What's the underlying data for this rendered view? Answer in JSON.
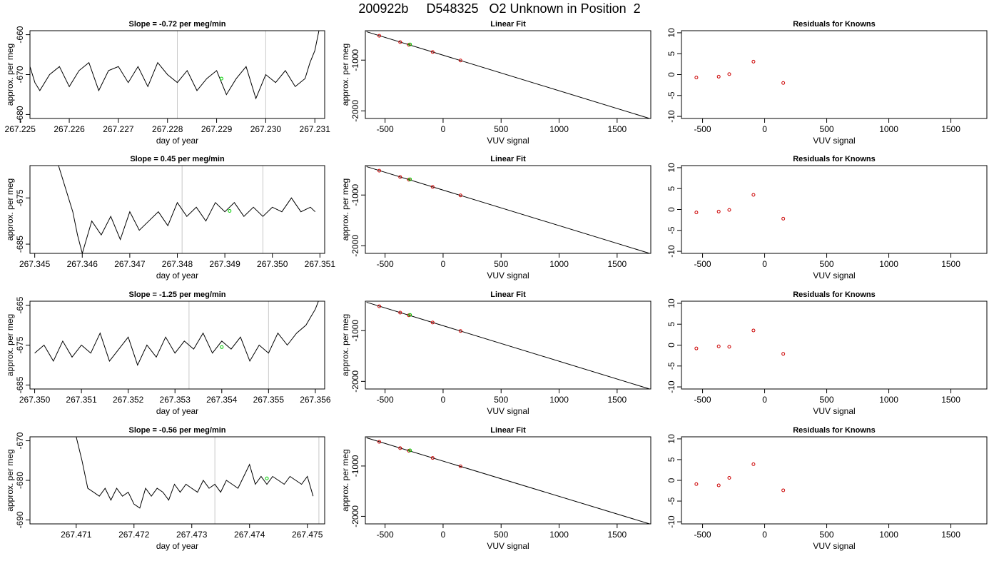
{
  "page_title": "200922b     D548325   O2 Unknown in Position  2",
  "colors": {
    "trace": "#000000",
    "marker_line": "#c8c8c8",
    "unknown_point": "#00cc00",
    "known_point": "#cc0000",
    "fit_line": "#000000"
  },
  "chart_data": [
    {
      "type": "line",
      "panel": "timeseries",
      "row": 1,
      "title": "Slope =  -0.72  per meg/min",
      "xlabel": "day of year",
      "ylabel": "approx. per meg",
      "xlim": [
        267.2252,
        267.2312
      ],
      "ylim": [
        -681,
        -659
      ],
      "xticks": [
        "267.225",
        "267.226",
        "267.227",
        "267.228",
        "267.229",
        "267.230",
        "267.231"
      ],
      "xtick_values": [
        267.225,
        267.226,
        267.227,
        267.228,
        267.229,
        267.23,
        267.231
      ],
      "yticks": [
        "-680",
        "-670",
        "-660"
      ],
      "ytick_values": [
        -680,
        -670,
        -660
      ],
      "x": [
        267.2252,
        267.2253,
        267.2254,
        267.2256,
        267.2258,
        267.226,
        267.2262,
        267.2264,
        267.2266,
        267.2268,
        267.227,
        267.2272,
        267.2274,
        267.2276,
        267.2278,
        267.228,
        267.2282,
        267.2284,
        267.2286,
        267.2288,
        267.229,
        267.2292,
        267.2294,
        267.2296,
        267.2298,
        267.23,
        267.2302,
        267.2304,
        267.2306,
        267.2308,
        267.2309,
        267.231,
        267.2311
      ],
      "y": [
        -668,
        -672,
        -674,
        -670,
        -668,
        -673,
        -669,
        -667,
        -674,
        -669,
        -668,
        -672,
        -668,
        -673,
        -667,
        -670,
        -672,
        -669,
        -674,
        -671,
        -669,
        -675,
        -671,
        -668,
        -676,
        -670,
        -672,
        -669,
        -673,
        -671,
        -667,
        -664,
        -658
      ],
      "vlines": [
        267.2282,
        267.23
      ],
      "unknown_point": {
        "x": 267.2291,
        "y": -671
      }
    },
    {
      "type": "line",
      "panel": "linear_fit",
      "row": 1,
      "title": "Linear Fit",
      "xlabel": "VUV signal",
      "ylabel": "approx. per meg",
      "xlim": [
        -670,
        1790
      ],
      "ylim": [
        -2150,
        -420
      ],
      "xticks": [
        "-500",
        "0",
        "500",
        "1000",
        "1500"
      ],
      "xtick_values": [
        -500,
        0,
        500,
        1000,
        1500
      ],
      "yticks": [
        "-1000",
        "-2000"
      ],
      "ytick_values": [
        -1000,
        -2000
      ],
      "fit_line": [
        [
          -660,
          -440
        ],
        [
          1780,
          -2150
        ]
      ],
      "knowns": [
        {
          "x": -550,
          "y": -520
        },
        {
          "x": -370,
          "y": -645
        },
        {
          "x": -295,
          "y": -697
        },
        {
          "x": -90,
          "y": -840
        },
        {
          "x": 150,
          "y": -1007
        }
      ],
      "unknown": {
        "x": -285,
        "y": -690
      }
    },
    {
      "type": "scatter",
      "panel": "residuals",
      "row": 1,
      "title": "Residuals for Knowns",
      "xlabel": "VUV signal",
      "ylabel": "",
      "xlim": [
        -670,
        1790
      ],
      "ylim": [
        -10.5,
        10.5
      ],
      "xticks": [
        "-500",
        "0",
        "500",
        "1000",
        "1500"
      ],
      "xtick_values": [
        -500,
        0,
        500,
        1000,
        1500
      ],
      "yticks": [
        "-10",
        "-5",
        "0",
        "5",
        "10"
      ],
      "ytick_values": [
        -10,
        -5,
        0,
        5,
        10
      ],
      "points": [
        {
          "x": -550,
          "y": -0.7
        },
        {
          "x": -370,
          "y": -0.5
        },
        {
          "x": -285,
          "y": 0.1
        },
        {
          "x": -90,
          "y": 3.1
        },
        {
          "x": 150,
          "y": -2.0
        }
      ]
    },
    {
      "type": "line",
      "panel": "timeseries",
      "row": 2,
      "title": "Slope =  0.45  per meg/min",
      "xlabel": "day of year",
      "ylabel": "approx. per meg",
      "xlim": [
        267.3449,
        267.3511
      ],
      "ylim": [
        -687,
        -668
      ],
      "xticks": [
        "267.345",
        "267.346",
        "267.347",
        "267.348",
        "267.349",
        "267.350",
        "267.351"
      ],
      "xtick_values": [
        267.345,
        267.346,
        267.347,
        267.348,
        267.349,
        267.35,
        267.351
      ],
      "yticks": [
        "-685",
        "-675"
      ],
      "ytick_values": [
        -685,
        -675
      ],
      "x": [
        267.3455,
        267.3458,
        267.3459,
        267.346,
        267.3462,
        267.3464,
        267.3466,
        267.3468,
        267.347,
        267.3472,
        267.3474,
        267.3476,
        267.3478,
        267.348,
        267.3482,
        267.3484,
        267.3486,
        267.3488,
        267.349,
        267.3492,
        267.3494,
        267.3496,
        267.3498,
        267.35,
        267.3502,
        267.3504,
        267.3506,
        267.3508,
        267.3509
      ],
      "y": [
        -668,
        -678,
        -683,
        -687,
        -680,
        -683,
        -679,
        -684,
        -678,
        -682,
        -680,
        -678,
        -681,
        -676,
        -679,
        -677,
        -680,
        -676,
        -678,
        -676,
        -679,
        -677,
        -679,
        -677,
        -678,
        -675,
        -678,
        -677,
        -678
      ],
      "vlines": [
        267.3481,
        267.3498
      ],
      "unknown_point": {
        "x": 267.3491,
        "y": -677.8
      }
    },
    {
      "type": "line",
      "panel": "linear_fit",
      "row": 2,
      "title": "Linear Fit",
      "xlabel": "VUV signal",
      "ylabel": "approx. per meg",
      "xlim": [
        -670,
        1790
      ],
      "ylim": [
        -2150,
        -420
      ],
      "xticks": [
        "-500",
        "0",
        "500",
        "1000",
        "1500"
      ],
      "xtick_values": [
        -500,
        0,
        500,
        1000,
        1500
      ],
      "yticks": [
        "-1000",
        "-2000"
      ],
      "ytick_values": [
        -1000,
        -2000
      ],
      "fit_line": [
        [
          -660,
          -440
        ],
        [
          1780,
          -2150
        ]
      ],
      "knowns": [
        {
          "x": -550,
          "y": -520
        },
        {
          "x": -370,
          "y": -645
        },
        {
          "x": -295,
          "y": -697
        },
        {
          "x": -90,
          "y": -840
        },
        {
          "x": 150,
          "y": -1007
        }
      ],
      "unknown": {
        "x": -285,
        "y": -690
      }
    },
    {
      "type": "scatter",
      "panel": "residuals",
      "row": 2,
      "title": "Residuals for Knowns",
      "xlabel": "VUV signal",
      "ylabel": "",
      "xlim": [
        -670,
        1790
      ],
      "ylim": [
        -10.5,
        10.5
      ],
      "xticks": [
        "-500",
        "0",
        "500",
        "1000",
        "1500"
      ],
      "xtick_values": [
        -500,
        0,
        500,
        1000,
        1500
      ],
      "yticks": [
        "-10",
        "-5",
        "0",
        "5",
        "10"
      ],
      "ytick_values": [
        -10,
        -5,
        0,
        5,
        10
      ],
      "points": [
        {
          "x": -550,
          "y": -0.7
        },
        {
          "x": -370,
          "y": -0.5
        },
        {
          "x": -285,
          "y": -0.1
        },
        {
          "x": -90,
          "y": 3.5
        },
        {
          "x": 150,
          "y": -2.2
        }
      ]
    },
    {
      "type": "line",
      "panel": "timeseries",
      "row": 3,
      "title": "Slope =  -1.25  per meg/min",
      "xlabel": "day of year",
      "ylabel": "approx. per meg",
      "xlim": [
        267.3499,
        267.3562
      ],
      "ylim": [
        -686,
        -664
      ],
      "xticks": [
        "267.350",
        "267.351",
        "267.352",
        "267.353",
        "267.354",
        "267.355",
        "267.356"
      ],
      "xtick_values": [
        267.35,
        267.351,
        267.352,
        267.353,
        267.354,
        267.355,
        267.356
      ],
      "yticks": [
        "-685",
        "-675",
        "-665"
      ],
      "ytick_values": [
        -685,
        -675,
        -665
      ],
      "x": [
        267.35,
        267.3502,
        267.3504,
        267.3506,
        267.3508,
        267.351,
        267.3512,
        267.3514,
        267.3516,
        267.3518,
        267.352,
        267.3522,
        267.3524,
        267.3526,
        267.3528,
        267.353,
        267.3532,
        267.3534,
        267.3536,
        267.3538,
        267.354,
        267.3542,
        267.3544,
        267.3546,
        267.3548,
        267.355,
        267.3552,
        267.3554,
        267.3556,
        267.3558,
        267.3559,
        267.356,
        267.3561
      ],
      "y": [
        -677,
        -675,
        -679,
        -674,
        -678,
        -675,
        -677,
        -672,
        -679,
        -676,
        -673,
        -680,
        -675,
        -678,
        -673,
        -677,
        -674,
        -676,
        -672,
        -677,
        -674,
        -676,
        -673,
        -679,
        -675,
        -677,
        -672,
        -675,
        -672,
        -670,
        -668,
        -666,
        -663
      ],
      "vlines": [
        267.3533,
        267.355
      ],
      "unknown_point": {
        "x": 267.354,
        "y": -675.5
      }
    },
    {
      "type": "line",
      "panel": "linear_fit",
      "row": 3,
      "title": "Linear Fit",
      "xlabel": "VUV signal",
      "ylabel": "approx. per meg",
      "xlim": [
        -670,
        1790
      ],
      "ylim": [
        -2150,
        -420
      ],
      "xticks": [
        "-500",
        "0",
        "500",
        "1000",
        "1500"
      ],
      "xtick_values": [
        -500,
        0,
        500,
        1000,
        1500
      ],
      "yticks": [
        "-1000",
        "-2000"
      ],
      "ytick_values": [
        -1000,
        -2000
      ],
      "fit_line": [
        [
          -660,
          -440
        ],
        [
          1780,
          -2150
        ]
      ],
      "knowns": [
        {
          "x": -550,
          "y": -520
        },
        {
          "x": -370,
          "y": -645
        },
        {
          "x": -295,
          "y": -697
        },
        {
          "x": -90,
          "y": -840
        },
        {
          "x": 150,
          "y": -1007
        }
      ],
      "unknown": {
        "x": -285,
        "y": -690
      }
    },
    {
      "type": "scatter",
      "panel": "residuals",
      "row": 3,
      "title": "Residuals for Knowns",
      "xlabel": "VUV signal",
      "ylabel": "",
      "xlim": [
        -670,
        1790
      ],
      "ylim": [
        -10.5,
        10.5
      ],
      "xticks": [
        "-500",
        "0",
        "500",
        "1000",
        "1500"
      ],
      "xtick_values": [
        -500,
        0,
        500,
        1000,
        1500
      ],
      "yticks": [
        "-10",
        "-5",
        "0",
        "5",
        "10"
      ],
      "ytick_values": [
        -10,
        -5,
        0,
        5,
        10
      ],
      "points": [
        {
          "x": -550,
          "y": -0.8
        },
        {
          "x": -370,
          "y": -0.3
        },
        {
          "x": -285,
          "y": -0.4
        },
        {
          "x": -90,
          "y": 3.5
        },
        {
          "x": 150,
          "y": -2.1
        }
      ]
    },
    {
      "type": "line",
      "panel": "timeseries",
      "row": 4,
      "title": "Slope =  -0.56  per meg/min",
      "xlabel": "day of year",
      "ylabel": "approx. per meg",
      "xlim": [
        267.4702,
        267.4753
      ],
      "ylim": [
        -691,
        -669
      ],
      "xticks": [
        "267.471",
        "267.472",
        "267.473",
        "267.474",
        "267.475"
      ],
      "xtick_values": [
        267.471,
        267.472,
        267.473,
        267.474,
        267.475
      ],
      "yticks": [
        "-690",
        "-680",
        "-670"
      ],
      "ytick_values": [
        -690,
        -680,
        -670
      ],
      "x": [
        267.471,
        267.4711,
        267.4712,
        267.4713,
        267.4714,
        267.4715,
        267.4716,
        267.4717,
        267.4718,
        267.4719,
        267.472,
        267.4721,
        267.4722,
        267.4723,
        267.4724,
        267.4725,
        267.4726,
        267.4727,
        267.4728,
        267.4729,
        267.473,
        267.4731,
        267.4732,
        267.4733,
        267.4734,
        267.4735,
        267.4736,
        267.4737,
        267.4738,
        267.4739,
        267.474,
        267.4741,
        267.4742,
        267.4743,
        267.4744,
        267.4745,
        267.4746,
        267.4747,
        267.4748,
        267.4749,
        267.475,
        267.4751
      ],
      "y": [
        -669,
        -675,
        -682,
        -683,
        -684,
        -682,
        -685,
        -682,
        -684,
        -683,
        -686,
        -687,
        -682,
        -684,
        -682,
        -683,
        -685,
        -681,
        -683,
        -681,
        -682,
        -683,
        -680,
        -682,
        -681,
        -683,
        -680,
        -681,
        -682,
        -679,
        -676,
        -681,
        -679,
        -681,
        -679,
        -680,
        -681,
        -679,
        -680,
        -681,
        -679,
        -684
      ],
      "vlines": [
        267.4734,
        267.4752
      ],
      "unknown_point": {
        "x": 267.4743,
        "y": -679.5
      }
    },
    {
      "type": "line",
      "panel": "linear_fit",
      "row": 4,
      "title": "Linear Fit",
      "xlabel": "VUV signal",
      "ylabel": "approx. per meg",
      "xlim": [
        -670,
        1790
      ],
      "ylim": [
        -2150,
        -420
      ],
      "xticks": [
        "-500",
        "0",
        "500",
        "1000",
        "1500"
      ],
      "xtick_values": [
        -500,
        0,
        500,
        1000,
        1500
      ],
      "yticks": [
        "-1000",
        "-2000"
      ],
      "ytick_values": [
        -1000,
        -2000
      ],
      "fit_line": [
        [
          -660,
          -440
        ],
        [
          1780,
          -2150
        ]
      ],
      "knowns": [
        {
          "x": -550,
          "y": -520
        },
        {
          "x": -370,
          "y": -645
        },
        {
          "x": -295,
          "y": -697
        },
        {
          "x": -90,
          "y": -840
        },
        {
          "x": 150,
          "y": -1007
        }
      ],
      "unknown": {
        "x": -285,
        "y": -690
      }
    },
    {
      "type": "scatter",
      "panel": "residuals",
      "row": 4,
      "title": "Residuals for Knowns",
      "xlabel": "VUV signal",
      "ylabel": "",
      "xlim": [
        -670,
        1790
      ],
      "ylim": [
        -10.5,
        10.5
      ],
      "xticks": [
        "-500",
        "0",
        "500",
        "1000",
        "1500"
      ],
      "xtick_values": [
        -500,
        0,
        500,
        1000,
        1500
      ],
      "yticks": [
        "-10",
        "-5",
        "0",
        "5",
        "10"
      ],
      "ytick_values": [
        -10,
        -5,
        0,
        5,
        10
      ],
      "points": [
        {
          "x": -550,
          "y": -0.9
        },
        {
          "x": -370,
          "y": -1.2
        },
        {
          "x": -285,
          "y": 0.6
        },
        {
          "x": -90,
          "y": 3.9
        },
        {
          "x": 150,
          "y": -2.4
        }
      ]
    }
  ]
}
